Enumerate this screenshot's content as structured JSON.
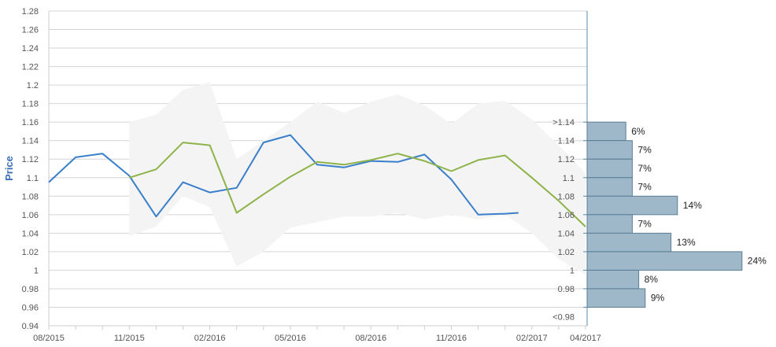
{
  "chart_data": {
    "type": "line",
    "ylabel": "Price",
    "ylim": [
      0.94,
      1.28
    ],
    "yticks": [
      0.94,
      0.96,
      0.98,
      1,
      1.02,
      1.04,
      1.06,
      1.08,
      1.1,
      1.12,
      1.14,
      1.16,
      1.18,
      1.2,
      1.22,
      1.24,
      1.26,
      1.28
    ],
    "ytick_labels": [
      "0.94",
      "0.96",
      "0.98",
      "1",
      "1.02",
      "1.04",
      "1.06",
      "1.08",
      "1.1",
      "1.12",
      "1.14",
      "1.16",
      "1.18",
      "1.2",
      "1.22",
      "1.24",
      "1.26",
      "1.28"
    ],
    "xticks": [
      {
        "label": "08/2015",
        "month": 0
      },
      {
        "label": "11/2015",
        "month": 3
      },
      {
        "label": "02/2016",
        "month": 6
      },
      {
        "label": "05/2016",
        "month": 9
      },
      {
        "label": "08/2016",
        "month": 12
      },
      {
        "label": "11/2016",
        "month": 15
      },
      {
        "label": "02/2017",
        "month": 18
      },
      {
        "label": "04/2017",
        "month": 20
      }
    ],
    "grid": true,
    "series": [
      {
        "color": "#3a7fc9",
        "points": [
          [
            0,
            1.095
          ],
          [
            1,
            1.122
          ],
          [
            2,
            1.126
          ],
          [
            3,
            1.102
          ],
          [
            4,
            1.058
          ],
          [
            5,
            1.095
          ],
          [
            6,
            1.084
          ],
          [
            7,
            1.089
          ],
          [
            8,
            1.138
          ],
          [
            9,
            1.146
          ],
          [
            10,
            1.114
          ],
          [
            11,
            1.111
          ],
          [
            12,
            1.118
          ],
          [
            13,
            1.117
          ],
          [
            14,
            1.125
          ],
          [
            15,
            1.098
          ],
          [
            16,
            1.06
          ],
          [
            17,
            1.061
          ],
          [
            17.5,
            1.062
          ]
        ]
      },
      {
        "color": "#8db34a",
        "points": [
          [
            3,
            1.1
          ],
          [
            4,
            1.109
          ],
          [
            5,
            1.138
          ],
          [
            6,
            1.135
          ],
          [
            7,
            1.062
          ],
          [
            8,
            1.082
          ],
          [
            9,
            1.101
          ],
          [
            10,
            1.117
          ],
          [
            11,
            1.114
          ],
          [
            12,
            1.119
          ],
          [
            13,
            1.126
          ],
          [
            14,
            1.118
          ],
          [
            15,
            1.107
          ],
          [
            16,
            1.119
          ],
          [
            17,
            1.124
          ],
          [
            18,
            1.1
          ],
          [
            19,
            1.075
          ],
          [
            20,
            1.047
          ]
        ]
      }
    ],
    "band": {
      "color": "#f4f4f4",
      "upper": [
        [
          3,
          1.16
        ],
        [
          4,
          1.168
        ],
        [
          5,
          1.195
        ],
        [
          6,
          1.203
        ],
        [
          7,
          1.12
        ],
        [
          8,
          1.14
        ],
        [
          9,
          1.16
        ],
        [
          10,
          1.182
        ],
        [
          11,
          1.17
        ],
        [
          12,
          1.182
        ],
        [
          13,
          1.19
        ],
        [
          14,
          1.178
        ],
        [
          15,
          1.158
        ],
        [
          16,
          1.18
        ],
        [
          17,
          1.183
        ],
        [
          18,
          1.163
        ],
        [
          19,
          1.135
        ],
        [
          20,
          1.105
        ]
      ],
      "lower": [
        [
          3,
          1.037
        ],
        [
          4,
          1.047
        ],
        [
          5,
          1.08
        ],
        [
          6,
          1.068
        ],
        [
          7,
          1.004
        ],
        [
          8,
          1.02
        ],
        [
          9,
          1.046
        ],
        [
          10,
          1.052
        ],
        [
          11,
          1.058
        ],
        [
          12,
          1.058
        ],
        [
          13,
          1.062
        ],
        [
          14,
          1.055
        ],
        [
          15,
          1.06
        ],
        [
          16,
          1.055
        ],
        [
          17,
          1.06
        ],
        [
          18,
          1.04
        ],
        [
          19,
          1.012
        ],
        [
          20,
          0.995
        ]
      ]
    },
    "histogram": {
      "color": "#9fb8c9",
      "bins": [
        {
          "label": ">1.14",
          "lo": 1.14,
          "hi": 1.16,
          "pct": 6,
          "pct_label": "6%"
        },
        {
          "label": "1.14",
          "lo": 1.12,
          "hi": 1.14,
          "pct": 7,
          "pct_label": "7%"
        },
        {
          "label": "1.12",
          "lo": 1.1,
          "hi": 1.12,
          "pct": 7,
          "pct_label": "7%"
        },
        {
          "label": "1.1",
          "lo": 1.08,
          "hi": 1.1,
          "pct": 7,
          "pct_label": "7%"
        },
        {
          "label": "1.08",
          "lo": 1.06,
          "hi": 1.08,
          "pct": 14,
          "pct_label": "14%"
        },
        {
          "label": "1.06",
          "lo": 1.04,
          "hi": 1.06,
          "pct": 7,
          "pct_label": "7%"
        },
        {
          "label": "1.04",
          "lo": 1.02,
          "hi": 1.04,
          "pct": 13,
          "pct_label": "13%"
        },
        {
          "label": "1.02",
          "lo": 1.0,
          "hi": 1.02,
          "pct": 24,
          "pct_label": "24%"
        },
        {
          "label": "1",
          "lo": 0.98,
          "hi": 1.0,
          "pct": 8,
          "pct_label": "8%"
        },
        {
          "label": "0.98",
          "lo": 0.96,
          "hi": 0.98,
          "pct": 9,
          "pct_label": "9%"
        },
        {
          "label": "<0.98",
          "lo": 0.96,
          "hi": 0.96,
          "pct": 0,
          "pct_label": ""
        }
      ]
    }
  }
}
